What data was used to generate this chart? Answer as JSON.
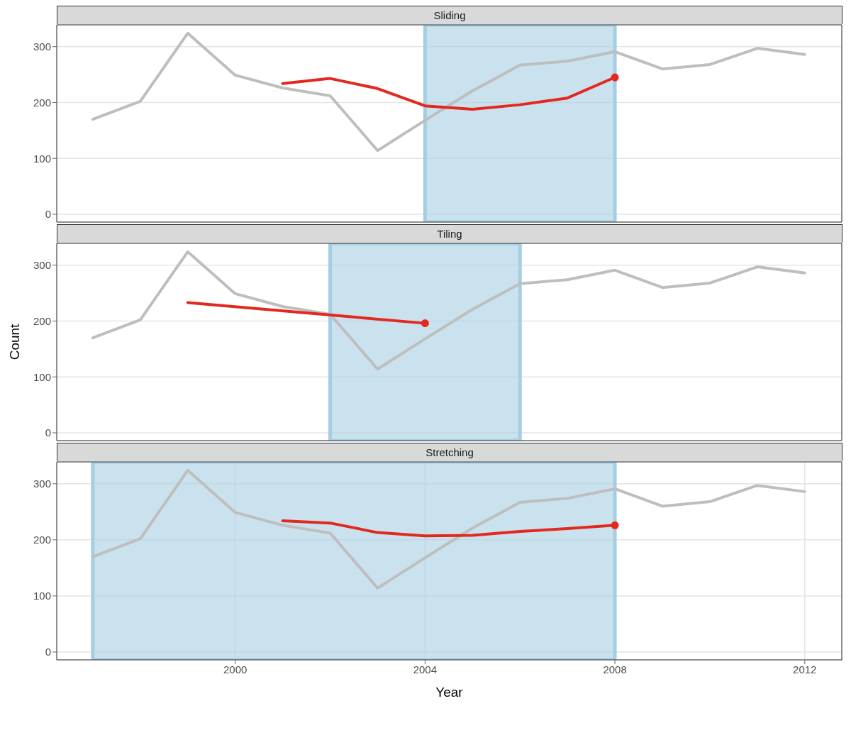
{
  "chart_data": [
    {
      "type": "line",
      "title": "Sliding",
      "xlim": [
        1996.24,
        2012.78
      ],
      "xticks": [
        2000,
        2004,
        2008,
        2012
      ],
      "ylim": [
        -14,
        339
      ],
      "yticks": [
        0,
        100,
        200,
        300
      ],
      "grid": true,
      "tick_labels": "y",
      "bands": [
        {
          "axis": "x",
          "from": 2004,
          "to": 2008,
          "color": "#a6cee3"
        }
      ],
      "series": [
        {
          "color": "#bebebe",
          "x": [
            1997,
            1998,
            1999,
            2000,
            2001,
            2002,
            2003,
            2004,
            2005,
            2006,
            2007,
            2008,
            2009,
            2010,
            2011,
            2012
          ],
          "values": [
            170,
            202,
            324,
            249,
            226,
            212,
            114,
            168,
            221,
            267,
            274,
            291,
            260,
            268,
            297,
            286
          ]
        },
        {
          "color": "#e3281f",
          "x": [
            2001,
            2002,
            2003,
            2004,
            2005,
            2006,
            2007,
            2008
          ],
          "values": [
            234,
            243,
            225,
            194,
            188,
            196,
            208,
            245
          ]
        },
        {
          "type": "scatter",
          "color": "#e3281f",
          "x": [
            2008
          ],
          "values": [
            245
          ]
        }
      ]
    },
    {
      "type": "line",
      "title": "Tiling",
      "ylabel": "Count",
      "xlim": [
        1996.24,
        2012.78
      ],
      "xticks": [
        2000,
        2004,
        2008,
        2012
      ],
      "ylim": [
        -14,
        339
      ],
      "yticks": [
        0,
        100,
        200,
        300
      ],
      "grid": true,
      "tick_labels": "y",
      "bands": [
        {
          "axis": "x",
          "from": 2002,
          "to": 2006,
          "color": "#a6cee3"
        }
      ],
      "series": [
        {
          "color": "#bebebe",
          "x": [
            1997,
            1998,
            1999,
            2000,
            2001,
            2002,
            2003,
            2004,
            2005,
            2006,
            2007,
            2008,
            2009,
            2010,
            2011,
            2012
          ],
          "values": [
            170,
            202,
            324,
            249,
            226,
            212,
            114,
            168,
            221,
            267,
            274,
            291,
            260,
            268,
            297,
            286
          ]
        },
        {
          "color": "#e3281f",
          "x": [
            1999,
            2004
          ],
          "values": [
            233,
            196
          ]
        },
        {
          "type": "scatter",
          "color": "#e3281f",
          "x": [
            2004
          ],
          "values": [
            196
          ]
        }
      ]
    },
    {
      "type": "line",
      "title": "Stretching",
      "xlabel": "Year",
      "xlim": [
        1996.24,
        2012.78
      ],
      "xticks": [
        2000,
        2004,
        2008,
        2012
      ],
      "ylim": [
        -14,
        339
      ],
      "yticks": [
        0,
        100,
        200,
        300
      ],
      "grid": true,
      "bands": [
        {
          "axis": "x",
          "from": 1997,
          "to": 2008,
          "color": "#a6cee3"
        }
      ],
      "series": [
        {
          "color": "#bebebe",
          "x": [
            1997,
            1998,
            1999,
            2000,
            2001,
            2002,
            2003,
            2004,
            2005,
            2006,
            2007,
            2008,
            2009,
            2010,
            2011,
            2012
          ],
          "values": [
            170,
            202,
            324,
            249,
            226,
            212,
            114,
            168,
            221,
            267,
            274,
            291,
            260,
            268,
            297,
            286
          ]
        },
        {
          "color": "#e3281f",
          "x": [
            2001,
            2002,
            2003,
            2004,
            2005,
            2006,
            2007,
            2008
          ],
          "values": [
            234,
            230,
            213,
            207,
            208,
            215,
            220,
            226
          ]
        },
        {
          "type": "scatter",
          "color": "#e3281f",
          "x": [
            2008
          ],
          "values": [
            226
          ]
        }
      ]
    }
  ]
}
